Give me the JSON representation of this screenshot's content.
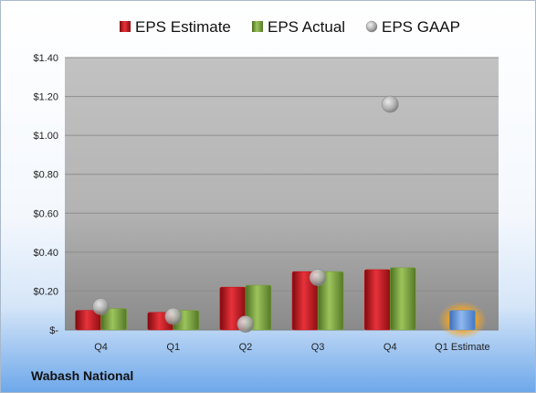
{
  "company": "Wabash National",
  "colors": {
    "estimate": "#c8141c",
    "actual": "#78a03c",
    "gaap": "#b4b4b4",
    "forecast": "#5a8fd6",
    "forecast_glow": "#f5a623"
  },
  "chart_data": {
    "type": "bar",
    "legend_position": "top",
    "grid": true,
    "categories": [
      "Q4",
      "Q1",
      "Q2",
      "Q3",
      "Q4",
      "Q1 Estimate"
    ],
    "ylim": [
      0,
      1.4
    ],
    "yticks": [
      {
        "value": 0,
        "label": "$-"
      },
      {
        "value": 0.2,
        "label": "$0.20"
      },
      {
        "value": 0.4,
        "label": "$0.40"
      },
      {
        "value": 0.6,
        "label": "$0.60"
      },
      {
        "value": 0.8,
        "label": "$0.80"
      },
      {
        "value": 1.0,
        "label": "$1.00"
      },
      {
        "value": 1.2,
        "label": "$1.20"
      },
      {
        "value": 1.4,
        "label": "$1.40"
      }
    ],
    "series": [
      {
        "name": "EPS Estimate",
        "kind": "bar",
        "values": [
          0.1,
          0.09,
          0.22,
          0.3,
          0.31,
          null
        ]
      },
      {
        "name": "EPS Actual",
        "kind": "bar",
        "values": [
          0.11,
          0.1,
          0.23,
          0.3,
          0.32,
          null
        ]
      },
      {
        "name": "EPS GAAP",
        "kind": "bubble",
        "values": [
          0.12,
          0.07,
          0.03,
          0.27,
          1.16,
          null
        ]
      }
    ],
    "forecast": {
      "category": "Q1 Estimate",
      "value": 0.1
    }
  }
}
